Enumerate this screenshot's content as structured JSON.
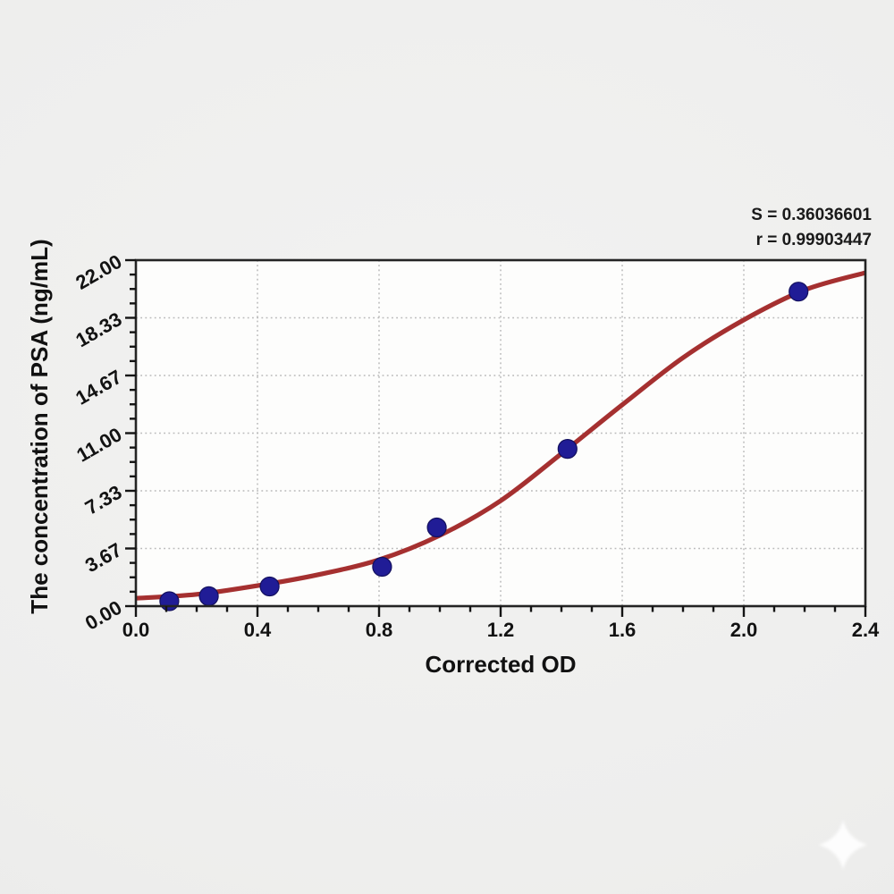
{
  "page": {
    "background_color": "#efefee",
    "plot_background_color": "#fdfdfc"
  },
  "annotation": {
    "s_line": "S = 0.36036601",
    "r_line": "r = 0.99903447"
  },
  "chart_data": {
    "type": "scatter",
    "title": "",
    "xlabel": "Corrected OD",
    "ylabel": "The concentration of PSA (ng/mL)",
    "xlim": [
      0,
      2.4
    ],
    "ylim": [
      0,
      22
    ],
    "grid": {
      "visible": true,
      "style": "dotted",
      "color": "#b9b9b9"
    },
    "legend": null,
    "x_ticks": {
      "values": [
        0.0,
        0.4,
        0.8,
        1.2,
        1.6,
        2.0,
        2.4
      ],
      "labels": [
        "0.0",
        "0.4",
        "0.8",
        "1.2",
        "1.6",
        "2.0",
        "2.4"
      ],
      "minor_step": 0.1
    },
    "y_ticks": {
      "values": [
        0,
        3.6667,
        7.3333,
        11,
        14.6667,
        18.3333,
        22
      ],
      "labels": [
        "0.00",
        "3.67",
        "7.33",
        "11.00",
        "14.67",
        "18.33",
        "22.00"
      ],
      "minor_divisions": 4,
      "label_rotation_deg": -30
    },
    "series": [
      {
        "name": "standard-points",
        "type": "scatter",
        "color": "#201c96",
        "edge_color": "#13105e",
        "marker_radius": 10.5,
        "points": [
          [
            0.11,
            0.31
          ],
          [
            0.24,
            0.63
          ],
          [
            0.44,
            1.25
          ],
          [
            0.81,
            2.5
          ],
          [
            0.99,
            5.0
          ],
          [
            1.42,
            10.0
          ],
          [
            2.18,
            20.0
          ]
        ]
      },
      {
        "name": "fitted-curve",
        "type": "line",
        "color": "#a53030",
        "points": [
          [
            0.0,
            0.5
          ],
          [
            0.2,
            0.75
          ],
          [
            0.4,
            1.3
          ],
          [
            0.6,
            2.0
          ],
          [
            0.8,
            2.95
          ],
          [
            1.0,
            4.5
          ],
          [
            1.2,
            6.7
          ],
          [
            1.4,
            9.7
          ],
          [
            1.6,
            12.8
          ],
          [
            1.8,
            15.8
          ],
          [
            2.0,
            18.2
          ],
          [
            2.2,
            20.1
          ],
          [
            2.4,
            21.2
          ]
        ]
      }
    ],
    "stats": {
      "S": "0.36036601",
      "r": "0.99903447"
    }
  }
}
